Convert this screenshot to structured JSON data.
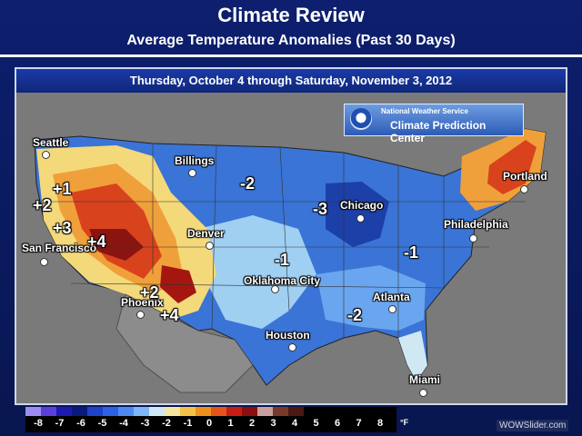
{
  "header": {
    "title": "Climate Review",
    "subtitle": "Average Temperature Anomalies (Past 30 Days)"
  },
  "panel": {
    "date_range": "Thursday, October 4 through Saturday, November 3, 2012",
    "badge_line1": "National Weather Service",
    "badge_line2": "Climate Prediction Center"
  },
  "cities": [
    {
      "name": "Seattle"
    },
    {
      "name": "Billings"
    },
    {
      "name": "San Francisco"
    },
    {
      "name": "Denver"
    },
    {
      "name": "Phoenix"
    },
    {
      "name": "Oklahoma City"
    },
    {
      "name": "Houston"
    },
    {
      "name": "Chicago"
    },
    {
      "name": "Atlanta"
    },
    {
      "name": "Miami"
    },
    {
      "name": "Philadelphia"
    },
    {
      "name": "Portland"
    }
  ],
  "anomaly_labels": [
    "+1",
    "+2",
    "+3",
    "+4",
    "+2",
    "+4",
    "-2",
    "-1",
    "-3",
    "-1",
    "-2"
  ],
  "legend": {
    "ticks": [
      "-8",
      "-7",
      "-6",
      "-5",
      "-4",
      "-3",
      "-2",
      "-1",
      "0",
      "1",
      "2",
      "3",
      "4",
      "5",
      "6",
      "7",
      "8"
    ],
    "unit": "°F",
    "colors": [
      "#9c8cf0",
      "#5b3fd8",
      "#1c1ab0",
      "#0a1a7a",
      "#1e43c8",
      "#2e62e2",
      "#4f8af0",
      "#7fb6f6",
      "#cfe8f4",
      "#f6e6a0",
      "#f4c246",
      "#f0901c",
      "#e6541a",
      "#c81d14",
      "#8a0f0e",
      "#c8a0a0",
      "#7a3a2a",
      "#4a1a10"
    ]
  },
  "watermark": "WOWSlider.com"
}
